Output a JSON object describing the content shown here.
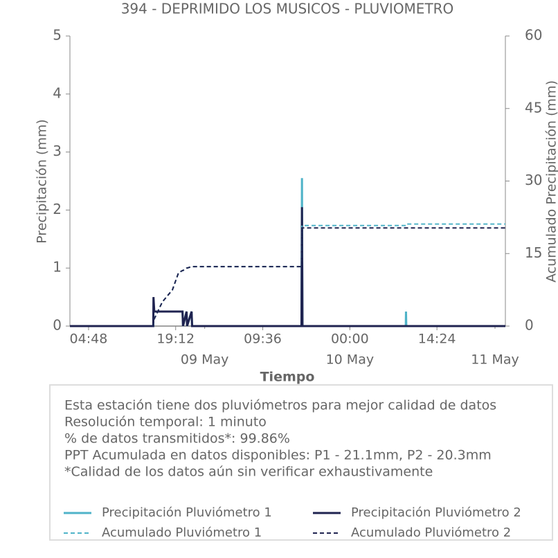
{
  "chart_data": {
    "type": "line",
    "title": "394 - DEPRIMIDO LOS MUSICOS - PLUVIOMETRO",
    "xlabel": "Tiempo",
    "ylabel": "Precipitación (mm)",
    "y2label": "Acumulado Precipitación (mm)",
    "x": [
      "May 08 01:43",
      "May 08 15:30",
      "May 08 15:32",
      "May 08 15:40",
      "May 08 17:00",
      "May 08 18:40",
      "May 08 19:40",
      "May 08 20:20",
      "May 08 20:25",
      "May 08 21:00",
      "May 08 21:05",
      "May 08 21:50",
      "May 08 21:55",
      "May 09 16:00",
      "May 09 16:05",
      "May 09 16:10",
      "May 10 09:15",
      "May 10 09:17",
      "May 10 09:20",
      "May 11 01:43"
    ],
    "series": [
      {
        "name": "Precipitación Pluviómetro 1",
        "color": "#4fb3c8",
        "style": "solid",
        "axis": "y",
        "values": [
          0,
          0,
          0.25,
          0.25,
          0.25,
          0.25,
          0.25,
          0.25,
          0,
          0.25,
          0,
          0.25,
          0,
          0,
          2.55,
          0,
          0,
          0.25,
          0,
          0
        ]
      },
      {
        "name": "Precipitación Pluviómetro 2",
        "color": "#1f2350",
        "style": "solid",
        "axis": "y",
        "values": [
          0,
          0,
          0.5,
          0.25,
          0.25,
          0.25,
          0.25,
          0.25,
          0,
          0.25,
          0,
          0.25,
          0,
          0,
          2.05,
          0,
          0,
          0,
          0,
          0
        ]
      },
      {
        "name": "Acumulado Pluviómetro 1",
        "color": "#4fb3c8",
        "style": "dashed",
        "axis": "y2",
        "values": [
          0,
          0,
          0.3,
          1.5,
          5,
          7.5,
          11,
          11.5,
          11.5,
          12,
          12,
          12.3,
          12.3,
          12.3,
          20.8,
          20.8,
          20.8,
          21.1,
          21.1,
          21.1
        ]
      },
      {
        "name": "Acumulado Pluviómetro 2",
        "color": "#1f2350",
        "style": "dashed",
        "axis": "y2",
        "values": [
          0,
          0,
          0.5,
          1.5,
          5,
          7.5,
          11,
          11.5,
          11.5,
          12,
          12,
          12.3,
          12.3,
          12.3,
          20.3,
          20.3,
          20.3,
          20.3,
          20.3,
          20.3
        ]
      }
    ],
    "xlim": [
      "May 08 01:43",
      "May 11 01:43"
    ],
    "xticks": [
      {
        "value": "May 08 04:48",
        "label": "04:48"
      },
      {
        "value": "May 08 19:12",
        "label": "19:12"
      },
      {
        "value": "May 09 09:36",
        "label": "09:36"
      },
      {
        "value": "May 10 00:00",
        "label": "00:00"
      },
      {
        "value": "May 10 14:24",
        "label": "14:24"
      }
    ],
    "date_ticks": [
      {
        "value": "May 09 00:00",
        "label": "09 May"
      },
      {
        "value": "May 10 00:00",
        "label": "10 May"
      },
      {
        "value": "May 11 00:00",
        "label": "11 May"
      }
    ],
    "ylim": [
      0,
      5
    ],
    "yticks": [
      0,
      1,
      2,
      3,
      4,
      5
    ],
    "y2lim": [
      0,
      60
    ],
    "y2ticks": [
      0,
      15,
      30,
      45,
      60
    ],
    "notes": [
      "Esta estación tiene dos pluviómetros para mejor calidad de datos",
      "Resolución temporal: 1 minuto",
      "% de datos transmitidos*: 99.86%",
      "PPT Acumulada en datos disponibles: P1 - 21.1mm, P2 - 20.3mm",
      "*Calidad de los datos aún sin verificar exhaustivamente"
    ]
  }
}
